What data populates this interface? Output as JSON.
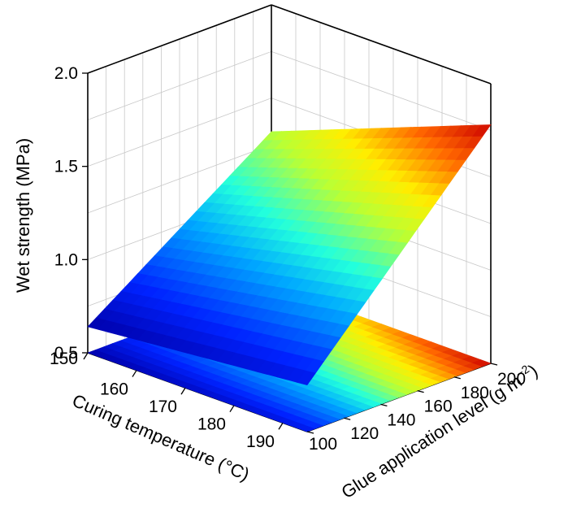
{
  "chart_data": {
    "type": "surface",
    "title": "",
    "axes": {
      "x": {
        "label": "Curing temperature (°C)",
        "range": [
          150,
          195
        ],
        "ticks": [
          150,
          160,
          170,
          180,
          190
        ]
      },
      "y": {
        "label": "Glue application level (g m",
        "label_sup": "−2",
        "label_end": ")",
        "range": [
          100,
          200
        ],
        "ticks": [
          100,
          120,
          140,
          160,
          180,
          200
        ]
      },
      "z": {
        "label": "Wet strength (MPa)",
        "range": [
          0.5,
          2.0
        ],
        "ticks": [
          0.5,
          1.0,
          1.5,
          2.0
        ]
      }
    },
    "grid": true,
    "colormap": "jet",
    "projected_contour_on_floor": true,
    "surface_corners": [
      {
        "curing_temperature": 150,
        "glue_level": 100,
        "wet_strength": 0.64
      },
      {
        "curing_temperature": 195,
        "glue_level": 100,
        "wet_strength": 0.75
      },
      {
        "curing_temperature": 150,
        "glue_level": 200,
        "wet_strength": 1.32
      },
      {
        "curing_temperature": 195,
        "glue_level": 200,
        "wet_strength": 1.78
      }
    ]
  }
}
